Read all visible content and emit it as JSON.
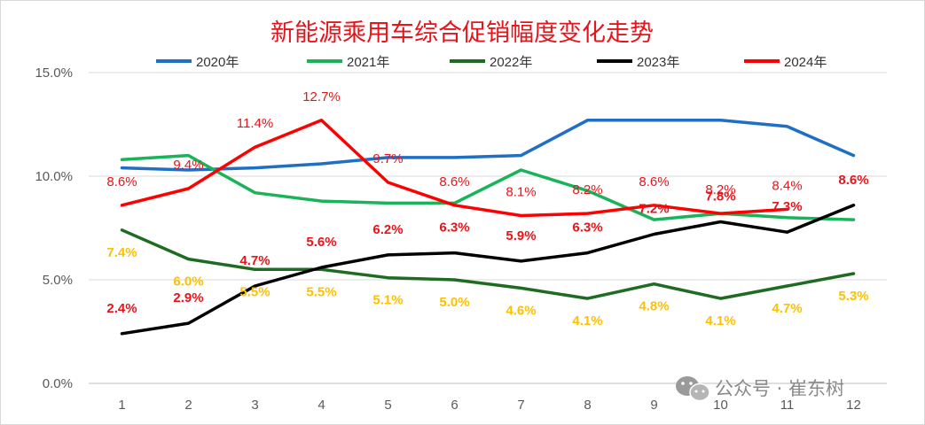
{
  "chart_data": {
    "type": "line",
    "title": "新能源乘用车综合促销幅度变化走势",
    "title_color": "#e8141b",
    "categories": [
      "1",
      "2",
      "3",
      "4",
      "5",
      "6",
      "7",
      "8",
      "9",
      "10",
      "11",
      "12"
    ],
    "y_ticks": [
      "0.0%",
      "5.0%",
      "10.0%",
      "15.0%"
    ],
    "ylim": [
      0,
      15
    ],
    "grid": true,
    "legend_position": "top",
    "series": [
      {
        "name": "2020年",
        "color": "#1f6fc5",
        "values": [
          10.4,
          10.3,
          10.4,
          10.6,
          10.9,
          10.9,
          11.0,
          12.7,
          12.7,
          12.7,
          12.4,
          11.0
        ],
        "labels": []
      },
      {
        "name": "2021年",
        "color": "#19b45a",
        "values": [
          10.8,
          11.0,
          9.2,
          8.8,
          8.7,
          8.7,
          10.3,
          9.3,
          7.9,
          8.2,
          8.0,
          7.9
        ],
        "labels": []
      },
      {
        "name": "2022年",
        "color": "#1e6b22",
        "values": [
          7.4,
          6.0,
          5.5,
          5.5,
          5.1,
          5.0,
          4.6,
          4.1,
          4.8,
          4.1,
          4.7,
          5.3
        ],
        "labels": [
          "7.4%",
          "6.0%",
          "5.5%",
          "5.5%",
          "5.1%",
          "5.0%",
          "4.6%",
          "4.1%",
          "4.8%",
          "4.1%",
          "4.7%",
          "5.3%"
        ],
        "label_color": "#ffc000"
      },
      {
        "name": "2023年",
        "color": "#000000",
        "values": [
          2.4,
          2.9,
          4.7,
          5.6,
          6.2,
          6.3,
          5.9,
          6.3,
          7.2,
          7.8,
          7.3,
          8.6
        ],
        "labels": [
          "2.4%",
          "2.9%",
          "4.7%",
          "5.6%",
          "6.2%",
          "6.3%",
          "5.9%",
          "6.3%",
          "7.2%",
          "7.8%",
          "7.3%",
          "8.6%"
        ],
        "label_color": "#e8141b"
      },
      {
        "name": "2024年",
        "color": "#ff0000",
        "values": [
          8.6,
          9.4,
          11.4,
          12.7,
          9.7,
          8.6,
          8.1,
          8.2,
          8.6,
          8.2,
          8.4,
          null
        ],
        "labels": [
          "8.6%",
          "9.4%",
          "11.4%",
          "12.7%",
          "9.7%",
          "8.6%",
          "8.1%",
          "8.2%",
          "8.6%",
          "8.2%",
          "8.4%",
          ""
        ],
        "label_color": "#e8141b"
      }
    ]
  },
  "watermark": {
    "text": "公众号 · 崔东树",
    "icon": "wechat-icon"
  }
}
